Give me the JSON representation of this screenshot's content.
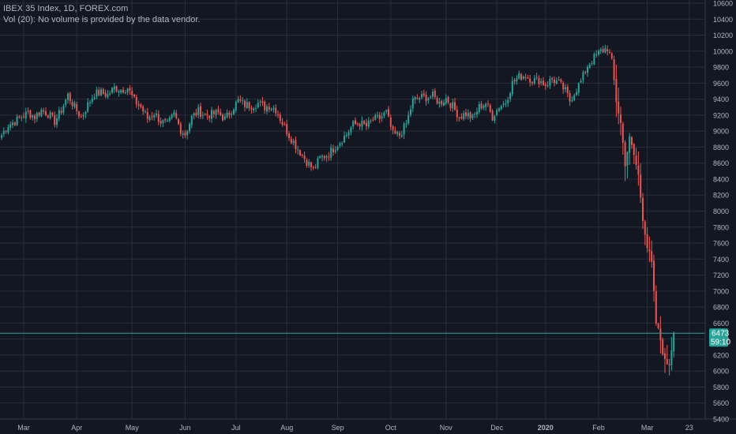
{
  "legend": {
    "symbol_line": "IBEX 35 Index, 1D, FOREX.com",
    "volume_line": "Vol (20): No volume is provided by the data vendor."
  },
  "price_label": {
    "price": "6473",
    "countdown": "59:10"
  },
  "colors": {
    "background": "#131722",
    "grid": "#2a2e39",
    "up": "#26a69a",
    "down": "#ef5350",
    "text": "#b2b5be",
    "price_line": "#26a69a"
  },
  "chart_data": {
    "type": "candlestick",
    "title": "IBEX 35 Index, 1D, FOREX.com",
    "ylim": [
      5400,
      10600
    ],
    "y_ticks": [
      5400,
      5600,
      5800,
      6000,
      6200,
      6400,
      6600,
      6800,
      7000,
      7200,
      7400,
      7600,
      7800,
      8000,
      8200,
      8400,
      8600,
      8800,
      9000,
      9200,
      9400,
      9600,
      9800,
      10000,
      10200,
      10400,
      10600
    ],
    "x_ticks": [
      {
        "label": "Mar",
        "bar": 10
      },
      {
        "label": "Apr",
        "bar": 34
      },
      {
        "label": "May",
        "bar": 59
      },
      {
        "label": "Jun",
        "bar": 83
      },
      {
        "label": "Jul",
        "bar": 106
      },
      {
        "label": "Aug",
        "bar": 129
      },
      {
        "label": "Sep",
        "bar": 152
      },
      {
        "label": "Oct",
        "bar": 176
      },
      {
        "label": "Nov",
        "bar": 201
      },
      {
        "label": "Dec",
        "bar": 224
      },
      {
        "label": "2020",
        "bar": 246
      },
      {
        "label": "Feb",
        "bar": 270
      },
      {
        "label": "Mar",
        "bar": 292
      },
      {
        "label": "23",
        "bar": 311
      }
    ],
    "last_price": 6473,
    "candles_close_path": [
      [
        0,
        8950
      ],
      [
        3,
        9080
      ],
      [
        6,
        9120
      ],
      [
        9,
        9180
      ],
      [
        12,
        9230
      ],
      [
        15,
        9180
      ],
      [
        18,
        9260
      ],
      [
        21,
        9220
      ],
      [
        24,
        9120
      ],
      [
        27,
        9260
      ],
      [
        30,
        9450
      ],
      [
        33,
        9300
      ],
      [
        36,
        9170
      ],
      [
        39,
        9330
      ],
      [
        42,
        9470
      ],
      [
        45,
        9480
      ],
      [
        48,
        9450
      ],
      [
        51,
        9540
      ],
      [
        54,
        9520
      ],
      [
        57,
        9540
      ],
      [
        60,
        9380
      ],
      [
        63,
        9300
      ],
      [
        66,
        9160
      ],
      [
        69,
        9230
      ],
      [
        72,
        9120
      ],
      [
        75,
        9080
      ],
      [
        78,
        9210
      ],
      [
        81,
        9020
      ],
      [
        83,
        8960
      ],
      [
        86,
        9170
      ],
      [
        89,
        9250
      ],
      [
        92,
        9200
      ],
      [
        95,
        9210
      ],
      [
        98,
        9230
      ],
      [
        101,
        9150
      ],
      [
        104,
        9270
      ],
      [
        107,
        9380
      ],
      [
        110,
        9330
      ],
      [
        113,
        9320
      ],
      [
        116,
        9350
      ],
      [
        119,
        9300
      ],
      [
        121,
        9320
      ],
      [
        124,
        9270
      ],
      [
        127,
        9100
      ],
      [
        130,
        8950
      ],
      [
        133,
        8820
      ],
      [
        136,
        8700
      ],
      [
        138,
        8620
      ],
      [
        141,
        8520
      ],
      [
        144,
        8660
      ],
      [
        147,
        8700
      ],
      [
        150,
        8780
      ],
      [
        153,
        8870
      ],
      [
        156,
        8960
      ],
      [
        159,
        9080
      ],
      [
        162,
        9100
      ],
      [
        165,
        9060
      ],
      [
        168,
        9140
      ],
      [
        171,
        9160
      ],
      [
        174,
        9230
      ],
      [
        177,
        8960
      ],
      [
        180,
        8950
      ],
      [
        183,
        9090
      ],
      [
        186,
        9380
      ],
      [
        189,
        9420
      ],
      [
        192,
        9420
      ],
      [
        195,
        9440
      ],
      [
        198,
        9350
      ],
      [
        201,
        9410
      ],
      [
        204,
        9310
      ],
      [
        207,
        9180
      ],
      [
        210,
        9220
      ],
      [
        213,
        9160
      ],
      [
        216,
        9300
      ],
      [
        219,
        9350
      ],
      [
        222,
        9180
      ],
      [
        225,
        9310
      ],
      [
        228,
        9360
      ],
      [
        231,
        9600
      ],
      [
        234,
        9680
      ],
      [
        237,
        9700
      ],
      [
        240,
        9640
      ],
      [
        243,
        9640
      ],
      [
        246,
        9580
      ],
      [
        249,
        9650
      ],
      [
        252,
        9600
      ],
      [
        255,
        9500
      ],
      [
        257,
        9380
      ],
      [
        259,
        9480
      ],
      [
        262,
        9620
      ],
      [
        265,
        9820
      ],
      [
        268,
        9920
      ],
      [
        271,
        10000
      ],
      [
        274,
        10040
      ],
      [
        276,
        9880
      ],
      [
        278,
        9380
      ],
      [
        280,
        9100
      ],
      [
        282,
        8600
      ],
      [
        284,
        8900
      ],
      [
        286,
        8700
      ],
      [
        288,
        8450
      ],
      [
        290,
        7900
      ],
      [
        292,
        7550
      ],
      [
        294,
        7350
      ],
      [
        296,
        6600
      ],
      [
        298,
        6390
      ],
      [
        300,
        6110
      ],
      [
        302,
        6100
      ],
      [
        304,
        6473
      ]
    ]
  }
}
